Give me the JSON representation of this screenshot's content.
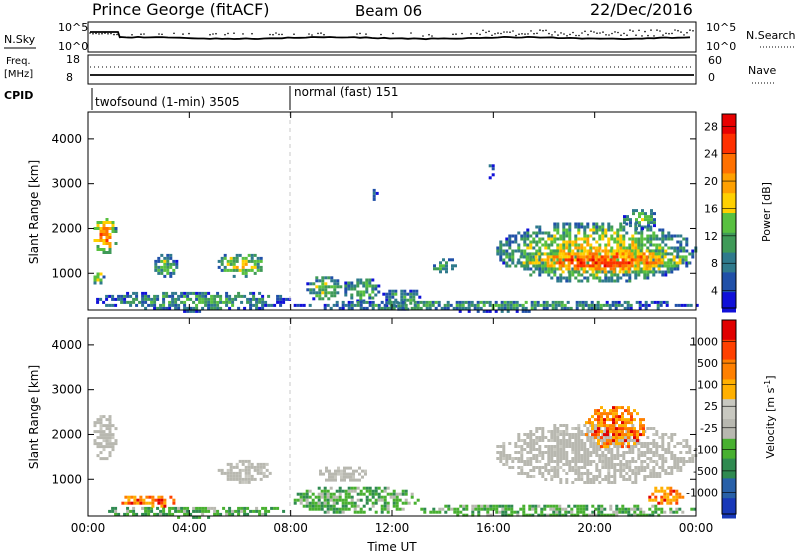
{
  "header": {
    "station": "Prince George (fitACF)",
    "beam": "Beam 06",
    "date": "22/Dec/2016"
  },
  "top_panel": {
    "nsky_label": "N.Sky",
    "nsky_tick_top": "10^5",
    "nsky_tick_bottom": "10^0",
    "nsearch_label": "N.Search",
    "nsearch_tick_top": "10^5",
    "nsearch_tick_bottom": "10^0",
    "freq_label_1": "Freq.",
    "freq_label_2": "[MHz]",
    "freq_tick_top": "18",
    "freq_tick_bottom": "8",
    "nave_label": "Nave",
    "nave_tick_top": "60",
    "nave_tick_bottom": "0",
    "cpid_label": "CPID",
    "cpid_1": "twofsound (1-min) 3505",
    "cpid_2": "normal (fast) 151"
  },
  "chart_data": [
    {
      "type": "heatmap",
      "name": "power",
      "ylabel": "Slant Range [km]",
      "xlabel": "",
      "xlim": [
        "00:00",
        "24:00"
      ],
      "ylim": [
        180,
        4600
      ],
      "xticks": [
        "00:00",
        "04:00",
        "08:00",
        "12:00",
        "16:00",
        "20:00",
        "00:00"
      ],
      "yticks": [
        1000,
        2000,
        3000,
        4000
      ],
      "colorbar": {
        "label": "Power [dB]",
        "ticks": [
          "4",
          "8",
          "12",
          "16",
          "20",
          "24",
          "28"
        ],
        "colors": [
          "#1010d8",
          "#2050a8",
          "#2f7a8c",
          "#3f9a58",
          "#58c040",
          "#ffd000",
          "#ffa000",
          "#ff7000",
          "#ff3000",
          "#e80000"
        ]
      },
      "echo_regions": [
        {
          "t": [
            0.1,
            1.1
          ],
          "r": [
            1450,
            2300
          ],
          "level": 8
        },
        {
          "t": [
            0.1,
            0.6
          ],
          "r": [
            750,
            1150
          ],
          "level": 6
        },
        {
          "t": [
            0.2,
            8.0
          ],
          "r": [
            180,
            650
          ],
          "level": 4
        },
        {
          "t": [
            2.5,
            3.5
          ],
          "r": [
            900,
            1500
          ],
          "level": 5
        },
        {
          "t": [
            5.0,
            7.0
          ],
          "r": [
            950,
            1500
          ],
          "level": 6
        },
        {
          "t": [
            8.5,
            10.0
          ],
          "r": [
            400,
            1000
          ],
          "level": 5
        },
        {
          "t": [
            10.0,
            11.5
          ],
          "r": [
            400,
            950
          ],
          "level": 5
        },
        {
          "t": [
            11.5,
            13.2
          ],
          "r": [
            200,
            700
          ],
          "level": 4
        },
        {
          "t": [
            13.5,
            14.5
          ],
          "r": [
            1000,
            1400
          ],
          "level": 4
        },
        {
          "t": [
            11.0,
            11.4
          ],
          "r": [
            2650,
            2950
          ],
          "level": 3
        },
        {
          "t": [
            15.7,
            16.0
          ],
          "r": [
            3100,
            3500
          ],
          "level": 3
        },
        {
          "t": [
            16.0,
            24.0
          ],
          "r": [
            800,
            2200
          ],
          "level": 6
        },
        {
          "t": [
            16.8,
            23.8
          ],
          "r": [
            1000,
            1600
          ],
          "level": 9
        },
        {
          "t": [
            21.0,
            22.5
          ],
          "r": [
            2000,
            2500
          ],
          "level": 5
        },
        {
          "t": [
            8.0,
            24.0
          ],
          "r": [
            180,
            450
          ],
          "level": 4
        }
      ]
    },
    {
      "type": "heatmap",
      "name": "velocity",
      "ylabel": "Slant Range [km]",
      "xlabel": "Time UT",
      "xlim": [
        "00:00",
        "24:00"
      ],
      "ylim": [
        180,
        4600
      ],
      "xticks": [
        "00:00",
        "04:00",
        "08:00",
        "12:00",
        "16:00",
        "20:00",
        "00:00"
      ],
      "yticks": [
        1000,
        2000,
        3000,
        4000
      ],
      "colorbar": {
        "label": "Velocity [m s^-1]",
        "ticks": [
          "1000",
          "500",
          "100",
          "25",
          "-25",
          "-100",
          "-500",
          "-1000"
        ],
        "colors": [
          "#1838b8",
          "#2860a8",
          "#2f8a50",
          "#48b030",
          "#b8b8b0",
          "#c8c8c0",
          "#ffb000",
          "#ff8000",
          "#ff4000",
          "#e00000"
        ]
      },
      "echo_regions": [
        {
          "t": [
            0.1,
            1.1
          ],
          "r": [
            1450,
            2500
          ],
          "class": "ground"
        },
        {
          "t": [
            0.2,
            8.0
          ],
          "r": [
            180,
            450
          ],
          "class": "positive"
        },
        {
          "t": [
            1.2,
            3.5
          ],
          "r": [
            400,
            700
          ],
          "class": "negative"
        },
        {
          "t": [
            5.0,
            7.2
          ],
          "r": [
            950,
            1500
          ],
          "class": "ground"
        },
        {
          "t": [
            8.0,
            13.0
          ],
          "r": [
            250,
            900
          ],
          "class": "positive"
        },
        {
          "t": [
            9.0,
            11.0
          ],
          "r": [
            950,
            1350
          ],
          "class": "ground"
        },
        {
          "t": [
            16.0,
            24.0
          ],
          "r": [
            900,
            2300
          ],
          "class": "ground"
        },
        {
          "t": [
            19.5,
            22.0
          ],
          "r": [
            1700,
            2700
          ],
          "class": "negative"
        },
        {
          "t": [
            22.0,
            23.5
          ],
          "r": [
            450,
            900
          ],
          "class": "negative"
        },
        {
          "t": [
            13.0,
            24.0
          ],
          "r": [
            180,
            500
          ],
          "class": "positive"
        }
      ]
    }
  ]
}
